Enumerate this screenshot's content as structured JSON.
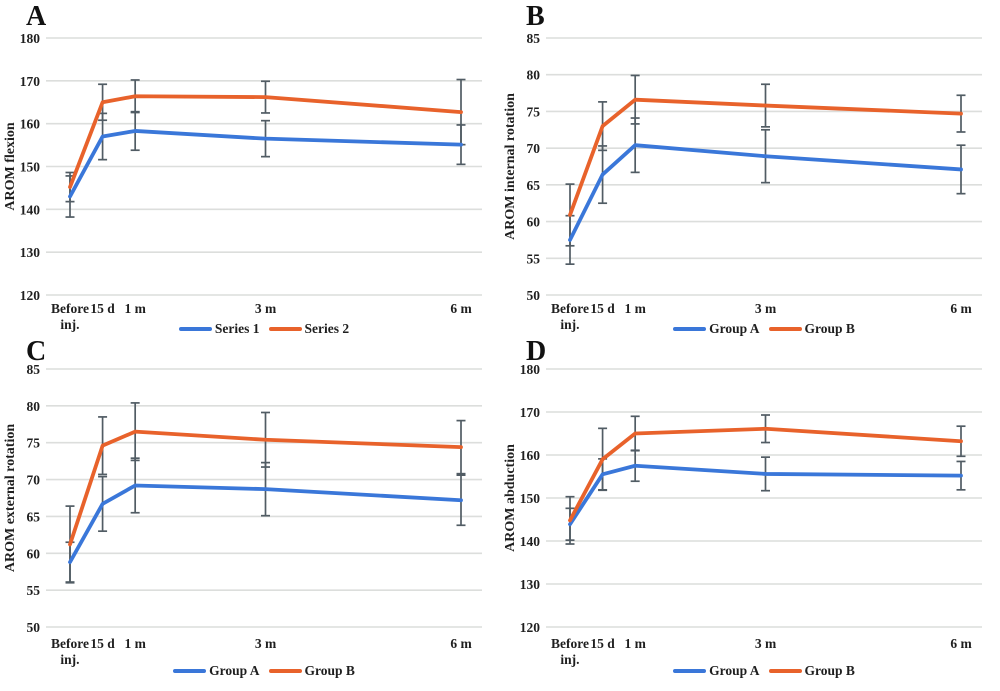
{
  "figure": {
    "background": "#ffffff"
  },
  "colors": {
    "series_blue": "#3a77d9",
    "series_orange": "#e8622b",
    "error_bar": "#515c64",
    "gridline": "#dcdedc",
    "text": "#1f1f1f"
  },
  "chart_data": [
    {
      "type": "line",
      "letter": "A",
      "ylabel": "AROM flexion",
      "ylim": [
        120,
        180
      ],
      "yticks": [
        120,
        130,
        140,
        150,
        160,
        170,
        180
      ],
      "x_days": [
        0,
        15,
        30,
        90,
        180
      ],
      "x_labels": [
        "Before inj.",
        "15 d",
        "1 m",
        "3 m",
        "6 m"
      ],
      "x_labels_lines": [
        [
          "Before",
          "inj."
        ],
        [
          "15 d"
        ],
        [
          "1 m"
        ],
        [
          "3 m"
        ],
        [
          "6 m"
        ]
      ],
      "grid": true,
      "legend_position": "bottom",
      "series": [
        {
          "name": "Series 1",
          "color_key": "series_blue",
          "values": [
            143,
            157,
            158.3,
            156.5,
            155.1
          ],
          "err": [
            4.8,
            5.4,
            4.5,
            4.2,
            4.6
          ]
        },
        {
          "name": "Series 2",
          "color_key": "series_orange",
          "values": [
            145.2,
            165,
            166.4,
            166.2,
            162.7
          ],
          "err": [
            3.4,
            4.2,
            3.8,
            3.7,
            7.6
          ]
        }
      ]
    },
    {
      "type": "line",
      "letter": "B",
      "ylabel": "AROM internal rotation",
      "ylim": [
        50,
        85
      ],
      "yticks": [
        50,
        55,
        60,
        65,
        70,
        75,
        80,
        85
      ],
      "x_days": [
        0,
        15,
        30,
        90,
        180
      ],
      "x_labels": [
        "Before inj.",
        "15 d",
        "1 m",
        "3 m",
        "6 m"
      ],
      "x_labels_lines": [
        [
          "Before",
          "inj."
        ],
        [
          "15 d"
        ],
        [
          "1 m"
        ],
        [
          "3 m"
        ],
        [
          "6 m"
        ]
      ],
      "grid": true,
      "legend_position": "bottom",
      "series": [
        {
          "name": "Group A",
          "color_key": "series_blue",
          "values": [
            57.5,
            66.4,
            70.4,
            68.9,
            67.1
          ],
          "err": [
            3.3,
            3.9,
            3.7,
            3.6,
            3.3
          ]
        },
        {
          "name": "Group B",
          "color_key": "series_orange",
          "values": [
            60.9,
            73,
            76.6,
            75.8,
            74.7
          ],
          "err": [
            4.2,
            3.3,
            3.3,
            2.9,
            2.5
          ]
        }
      ]
    },
    {
      "type": "line",
      "letter": "C",
      "ylabel": "AROM external rotation",
      "ylim": [
        50,
        85
      ],
      "yticks": [
        50,
        55,
        60,
        65,
        70,
        75,
        80,
        85
      ],
      "x_days": [
        0,
        15,
        30,
        90,
        180
      ],
      "x_labels": [
        "Before inj.",
        "15 d",
        "1 m",
        "3 m",
        "6 m"
      ],
      "x_labels_lines": [
        [
          "Before",
          "inj."
        ],
        [
          "15 d"
        ],
        [
          "1 m"
        ],
        [
          "3 m"
        ],
        [
          "6 m"
        ]
      ],
      "grid": true,
      "legend_position": "bottom",
      "series": [
        {
          "name": "Group A",
          "color_key": "series_blue",
          "values": [
            58.8,
            66.7,
            69.2,
            68.7,
            67.2
          ],
          "err": [
            2.7,
            3.7,
            3.7,
            3.6,
            3.4
          ]
        },
        {
          "name": "Group B",
          "color_key": "series_orange",
          "values": [
            61.2,
            74.6,
            76.5,
            75.4,
            74.4
          ],
          "err": [
            5.2,
            3.9,
            3.9,
            3.7,
            3.6
          ]
        }
      ]
    },
    {
      "type": "line",
      "letter": "D",
      "ylabel": "AROM abduction",
      "ylim": [
        120,
        180
      ],
      "yticks": [
        120,
        130,
        140,
        150,
        160,
        170,
        180
      ],
      "x_days": [
        0,
        15,
        30,
        90,
        180
      ],
      "x_labels": [
        "Before inj.",
        "15 d",
        "1 m",
        "3 m",
        "6 m"
      ],
      "x_labels_lines": [
        [
          "Before",
          "inj."
        ],
        [
          "15 d"
        ],
        [
          "1 m"
        ],
        [
          "3 m"
        ],
        [
          "6 m"
        ]
      ],
      "grid": true,
      "legend_position": "bottom",
      "series": [
        {
          "name": "Group A",
          "color_key": "series_blue",
          "values": [
            143.9,
            155.5,
            157.5,
            155.6,
            155.2
          ],
          "err": [
            3.7,
            3.6,
            3.6,
            3.9,
            3.3
          ]
        },
        {
          "name": "Group B",
          "color_key": "series_orange",
          "values": [
            144.8,
            159,
            165,
            166.1,
            163.2
          ],
          "err": [
            5.5,
            7.2,
            4,
            3.2,
            3.5
          ]
        }
      ]
    }
  ]
}
